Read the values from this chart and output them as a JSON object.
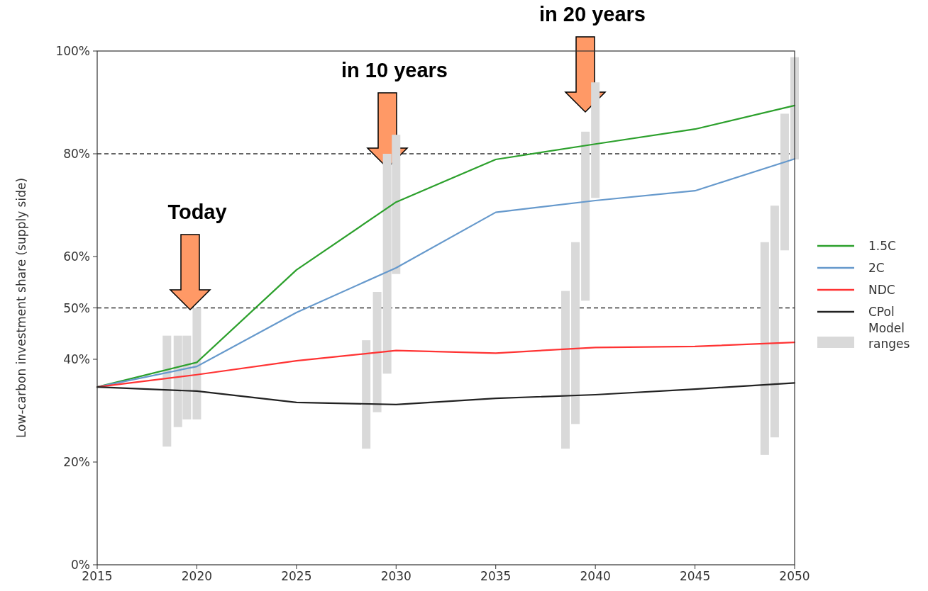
{
  "chart_data": {
    "type": "line",
    "ylabel": "Low-carbon investment share (supply side)",
    "x": [
      2015,
      2020,
      2025,
      2030,
      2035,
      2040,
      2045,
      2050
    ],
    "series": [
      {
        "name": "1.5C",
        "color": "#2ca02c",
        "values": [
          34.6,
          39.4,
          57.4,
          70.6,
          78.9,
          81.9,
          84.8,
          89.4
        ]
      },
      {
        "name": "2C",
        "color": "#6699cc",
        "values": [
          34.6,
          38.6,
          49.1,
          57.8,
          68.6,
          70.9,
          72.8,
          79.0
        ]
      },
      {
        "name": "NDC",
        "color": "#ff3333",
        "values": [
          34.6,
          37.0,
          39.7,
          41.7,
          41.2,
          42.3,
          42.5,
          43.3
        ]
      },
      {
        "name": "CPol",
        "color": "#222222",
        "values": [
          34.6,
          33.8,
          31.6,
          31.2,
          32.4,
          33.1,
          34.2,
          35.4
        ]
      },
      {
        "name": "Model ranges",
        "type": "bar",
        "color": "#d9d9d9",
        "x": [
          2018.5,
          2019.05,
          2019.5,
          2020.0,
          2028.5,
          2029.05,
          2029.55,
          2030.0,
          2038.5,
          2039.0,
          2039.5,
          2040.0,
          2048.5,
          2049.0,
          2049.5,
          2050.0
        ],
        "base": [
          23.0,
          26.8,
          28.3,
          28.3,
          22.6,
          29.7,
          37.2,
          56.6,
          22.6,
          27.4,
          51.4,
          71.4,
          21.4,
          24.8,
          61.2,
          78.9
        ],
        "values": [
          21.6,
          17.8,
          16.3,
          21.7,
          21.1,
          23.4,
          42.8,
          27.1,
          30.7,
          35.4,
          32.9,
          22.5,
          41.4,
          45.1,
          26.6,
          19.9
        ]
      }
    ],
    "xlim": [
      2015,
      2050
    ],
    "xticks": [
      2015,
      2020,
      2025,
      2030,
      2035,
      2040,
      2045,
      2050
    ],
    "ylim": [
      0,
      100
    ],
    "yticks": [
      {
        "value": 0,
        "label": "0%"
      },
      {
        "value": 20,
        "label": "20%"
      },
      {
        "value": 40,
        "label": "40%"
      },
      {
        "value": 50,
        "label": "50%"
      },
      {
        "value": 60,
        "label": "60%"
      },
      {
        "value": 80,
        "label": "80%"
      },
      {
        "value": 100,
        "label": "100%"
      }
    ],
    "ref_lines": [
      {
        "axis": "y",
        "value": 50,
        "color": "#333333",
        "line_style": "dashed"
      },
      {
        "axis": "y",
        "value": 80,
        "color": "#333333",
        "line_style": "dashed"
      }
    ],
    "annotations": [
      "Today",
      "in 10 years",
      "in 20 years"
    ],
    "legend": "right",
    "grid": false,
    "marker": "none",
    "line_style": "solid"
  }
}
